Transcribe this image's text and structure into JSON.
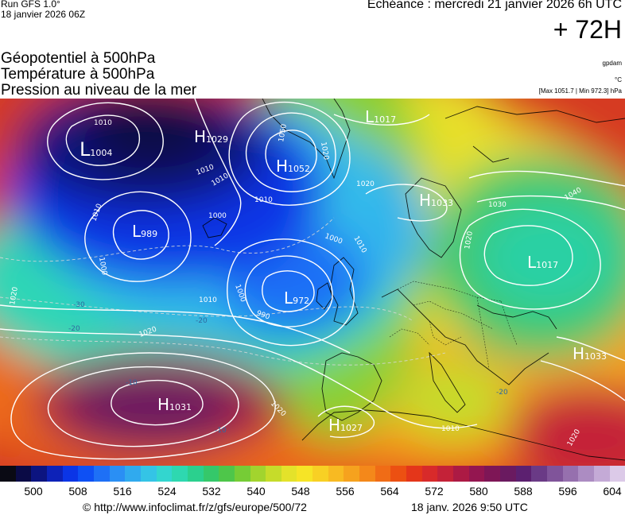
{
  "header": {
    "run": "Run GFS 1.0°",
    "run_date": "18 janvier 2026 06Z",
    "valid": "Echéance : mercredi 21 janvier 2026 6h UTC",
    "lead": "+ 72H"
  },
  "parameters": [
    "Géopotentiel à 500hPa",
    "Température à 500hPa",
    "Pression au niveau de la mer"
  ],
  "units": [
    "gpdam",
    "°C",
    "[Max 1051.7 | Min 972.3] hPa"
  ],
  "pressure_centers": [
    {
      "type": "L",
      "value": "1004"
    },
    {
      "type": "H",
      "value": "1029"
    },
    {
      "type": "H",
      "value": "1052"
    },
    {
      "type": "L",
      "value": "1017"
    },
    {
      "type": "L",
      "value": "989"
    },
    {
      "type": "H",
      "value": "1033"
    },
    {
      "type": "L",
      "value": "1017"
    },
    {
      "type": "L",
      "value": "972"
    },
    {
      "type": "H",
      "value": "1031"
    },
    {
      "type": "H",
      "value": "1027"
    },
    {
      "type": "H",
      "value": "1033"
    }
  ],
  "isobar_labels": [
    "1010",
    "1010",
    "1010",
    "1000",
    "1000",
    "1010",
    "1050",
    "1020",
    "1010",
    "1000",
    "1010",
    "1030",
    "1040",
    "1020",
    "1000",
    "990",
    "1010",
    "1020",
    "1020",
    "1010",
    "1020",
    "1020",
    "1020"
  ],
  "temp_labels": [
    "-30",
    "-20",
    "-20",
    "-10",
    "-10",
    "-20"
  ],
  "colorbar": {
    "ticks": [
      "500",
      "508",
      "516",
      "524",
      "532",
      "540",
      "548",
      "556",
      "564",
      "572",
      "580",
      "588",
      "596",
      "604"
    ],
    "colors": [
      "#0a0a14",
      "#0b0b46",
      "#0c1480",
      "#0d22b8",
      "#0b35e6",
      "#0e50f4",
      "#1e70f6",
      "#2a8ff4",
      "#30aaee",
      "#34c4e6",
      "#33d6cf",
      "#2ed8b0",
      "#2bd08e",
      "#35c86a",
      "#4ec64a",
      "#76cc36",
      "#a2d42e",
      "#c6dc2a",
      "#e4e22a",
      "#f6e426",
      "#f8d024",
      "#f8ba22",
      "#f6a21e",
      "#f4881a",
      "#f06c16",
      "#ec5012",
      "#e4361a",
      "#d82a2a",
      "#c42238",
      "#ac1a44",
      "#941650",
      "#7e1656",
      "#6a1a60",
      "#5c2070",
      "#6a3a86",
      "#80549a",
      "#9670ae",
      "#ac8cc2",
      "#c4aad6",
      "#dccae8"
    ]
  },
  "footer": {
    "credit": "© http://www.infoclimat.fr/z/gfs/europe/500/72",
    "timestamp": "18 janv. 2026  9:50 UTC"
  }
}
